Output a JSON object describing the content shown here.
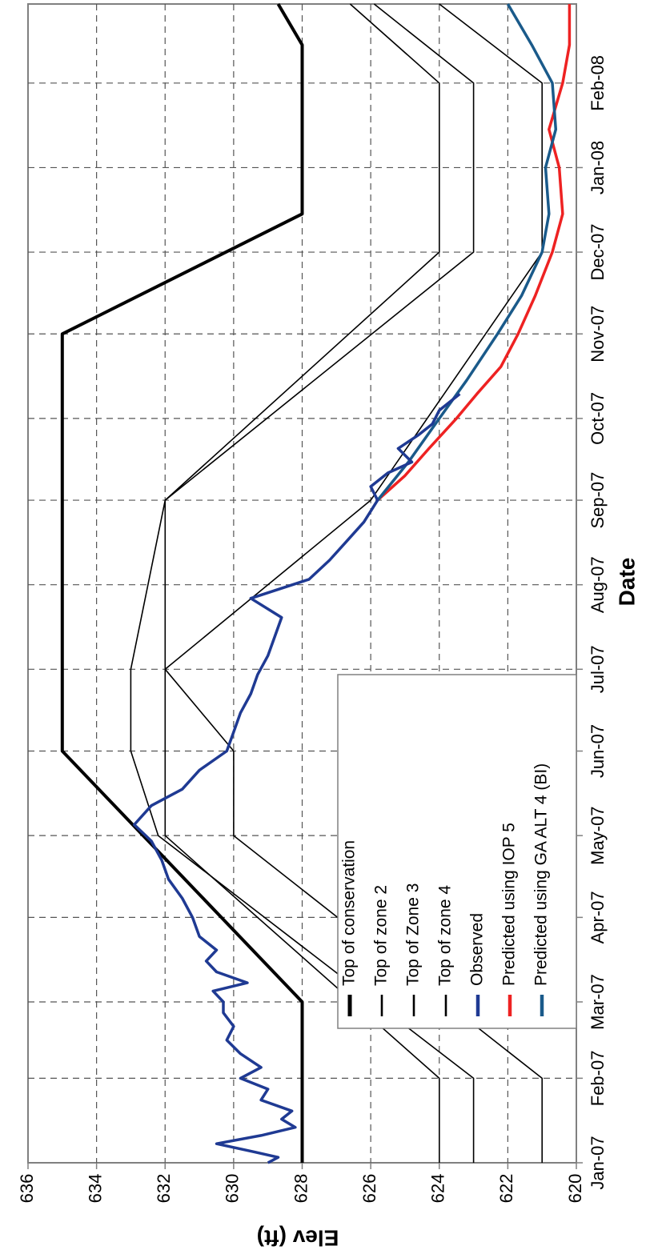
{
  "chart_data": {
    "type": "line",
    "orientation": "rotated-90-clockwise",
    "xlabel": "Date",
    "ylabel": "Elev (ft)",
    "x_ticks": [
      "Jan-07",
      "Feb-07",
      "Mar-07",
      "Apr-07",
      "May-07",
      "Jun-07",
      "Jul-07",
      "Aug-07",
      "Sep-07",
      "Oct-07",
      "Nov-07",
      "Dec-07",
      "Jan-08",
      "Feb-08"
    ],
    "y_ticks": [
      "620",
      "622",
      "624",
      "626",
      "628",
      "630",
      "632",
      "634",
      "636"
    ],
    "xlim": [
      "2007-01-01",
      "2008-03-01"
    ],
    "ylim": [
      620,
      636
    ],
    "grid": true,
    "legend_position": "center",
    "series": [
      {
        "name": "Top of conservation",
        "color": "#000000",
        "style": "thick",
        "x": [
          "2007-01-01",
          "2007-03-01",
          "2007-06-01",
          "2007-11-01",
          "2007-12-15",
          "2008-02-15",
          "2008-03-01"
        ],
        "y": [
          628,
          628,
          635,
          635,
          628,
          628,
          628.7
        ]
      },
      {
        "name": "Top of zone 2",
        "color": "#000000",
        "style": "thin",
        "x": [
          "2007-01-01",
          "2007-02-01",
          "2007-05-01",
          "2007-06-01",
          "2007-07-01",
          "2007-09-01",
          "2007-12-01",
          "2008-02-01",
          "2008-03-01"
        ],
        "y": [
          624,
          624,
          632,
          632,
          632,
          632,
          624,
          624,
          626.6
        ]
      },
      {
        "name": "Top of Zone 3",
        "color": "#000000",
        "style": "thin",
        "x": [
          "2007-01-01",
          "2007-02-01",
          "2007-05-01",
          "2007-06-01",
          "2007-07-01",
          "2007-09-01",
          "2007-12-01",
          "2008-02-01",
          "2008-03-01"
        ],
        "y": [
          623,
          623,
          632.2,
          633,
          633,
          632,
          623,
          623,
          625.9
        ]
      },
      {
        "name": "Top of zone 4",
        "color": "#000000",
        "style": "thin",
        "x": [
          "2007-01-01",
          "2007-02-01",
          "2007-05-01",
          "2007-06-01",
          "2007-07-01",
          "2007-09-01",
          "2007-12-01",
          "2008-02-01",
          "2008-03-01"
        ],
        "y": [
          621,
          621,
          630,
          630,
          632,
          626,
          621,
          621,
          624
        ]
      },
      {
        "name": "Observed",
        "color": "#1f3a93",
        "style": "medium",
        "x": [
          "2007-01-01",
          "2007-01-03",
          "2007-01-05",
          "2007-01-08",
          "2007-01-11",
          "2007-01-14",
          "2007-01-17",
          "2007-01-20",
          "2007-01-24",
          "2007-01-28",
          "2007-02-01",
          "2007-02-05",
          "2007-02-10",
          "2007-02-15",
          "2007-02-20",
          "2007-02-25",
          "2007-03-01",
          "2007-03-05",
          "2007-03-08",
          "2007-03-12",
          "2007-03-16",
          "2007-03-20",
          "2007-03-25",
          "2007-04-01",
          "2007-04-08",
          "2007-04-15",
          "2007-04-22",
          "2007-04-29",
          "2007-05-05",
          "2007-05-12",
          "2007-05-18",
          "2007-05-25",
          "2007-06-01",
          "2007-06-08",
          "2007-06-15",
          "2007-06-22",
          "2007-06-29",
          "2007-07-06",
          "2007-07-13",
          "2007-07-20",
          "2007-07-27",
          "2007-08-03",
          "2007-08-10",
          "2007-08-17",
          "2007-08-24",
          "2007-09-01",
          "2007-09-06",
          "2007-09-11",
          "2007-09-15",
          "2007-09-20",
          "2007-09-25",
          "2007-09-29",
          "2007-10-04",
          "2007-10-10"
        ],
        "y": [
          629.0,
          628.7,
          629.4,
          630.5,
          629.2,
          628.2,
          628.6,
          628.3,
          629.2,
          629.0,
          629.8,
          629.2,
          629.8,
          630.2,
          630.0,
          630.3,
          630.3,
          630.6,
          629.6,
          630.5,
          630.8,
          630.5,
          631.0,
          631.2,
          631.5,
          631.9,
          632.1,
          632.4,
          632.9,
          632.4,
          631.5,
          631.0,
          630.2,
          630.0,
          629.8,
          629.5,
          629.3,
          629.0,
          628.8,
          628.6,
          629.5,
          627.8,
          627.2,
          626.7,
          626.2,
          625.8,
          626.0,
          625.5,
          624.8,
          625.2,
          624.6,
          624.2,
          624.0,
          623.4
        ]
      },
      {
        "name": "Predicted using IOP 5",
        "color": "#ee2222",
        "style": "medium",
        "x": [
          "2007-09-01",
          "2007-09-10",
          "2007-09-20",
          "2007-10-01",
          "2007-10-10",
          "2007-10-20",
          "2007-11-01",
          "2007-11-15",
          "2007-12-01",
          "2007-12-15",
          "2008-01-01",
          "2008-01-15",
          "2008-02-01",
          "2008-02-15",
          "2008-03-01"
        ],
        "y": [
          625.8,
          625.0,
          624.3,
          623.5,
          622.9,
          622.2,
          621.7,
          621.2,
          620.7,
          620.4,
          620.5,
          620.8,
          620.4,
          620.2,
          620.2
        ]
      },
      {
        "name": "Predicted using GA ALT 4 (BI)",
        "color": "#1a5a8a",
        "style": "medium",
        "x": [
          "2007-09-01",
          "2007-09-15",
          "2007-10-01",
          "2007-10-15",
          "2007-11-01",
          "2007-11-15",
          "2007-12-01",
          "2007-12-15",
          "2008-01-01",
          "2008-01-15",
          "2008-02-01",
          "2008-02-15",
          "2008-03-01"
        ],
        "y": [
          625.8,
          624.9,
          624.0,
          623.2,
          622.3,
          621.6,
          621.0,
          620.8,
          620.9,
          620.6,
          620.7,
          621.3,
          622.0
        ]
      }
    ]
  }
}
